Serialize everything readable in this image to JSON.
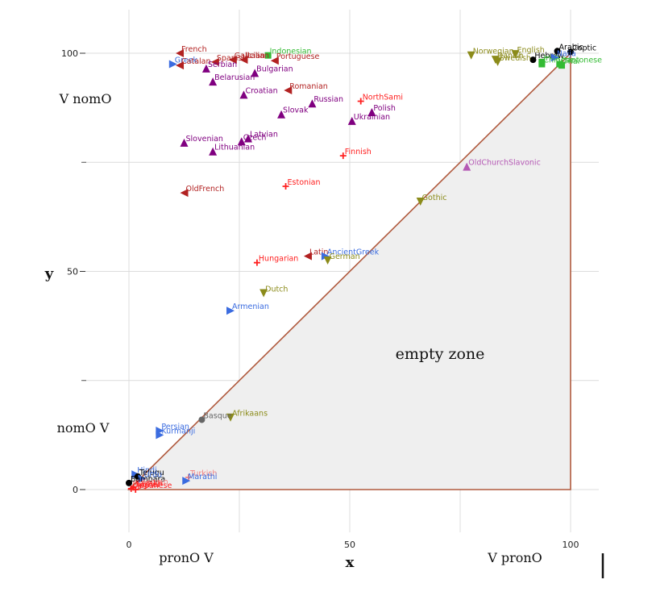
{
  "chart_data": {
    "type": "scatter",
    "xlabel": "x",
    "ylabel": "y",
    "xlim": [
      0,
      100
    ],
    "ylim": [
      0,
      100
    ],
    "x_ticks": [
      0,
      50,
      100
    ],
    "y_ticks": [
      0,
      50,
      100
    ],
    "grid": true,
    "region_label": "empty zone",
    "annotations": {
      "v_nomo": "V nomO",
      "nomo_v": "nomO V",
      "prono_v": "pronO V",
      "v_prono": "V pronO"
    },
    "colors": {
      "red": "#ff2020",
      "darkred": "#b22222",
      "purple": "#800080",
      "violet": "#b55ab5",
      "blue": "#3b6ce0",
      "olive": "#8b8b1a",
      "green": "#33bb33",
      "black": "#000000",
      "brown": "#a0522d",
      "salmon": "#f08080",
      "gray": "#666666"
    },
    "points": [
      {
        "name": "French",
        "x": 11.5,
        "y": 100,
        "color": "darkred",
        "marker": "tri-left"
      },
      {
        "name": "Galician",
        "x": 23.5,
        "y": 98.5,
        "color": "darkred",
        "marker": "tri-left"
      },
      {
        "name": "Indonesian",
        "x": 31.5,
        "y": 99.5,
        "color": "green",
        "marker": "square"
      },
      {
        "name": "Greek",
        "x": 10,
        "y": 97.5,
        "color": "blue",
        "marker": "tri-right"
      },
      {
        "name": "Catalan",
        "x": 11.5,
        "y": 97.2,
        "color": "darkred",
        "marker": "tri-left"
      },
      {
        "name": "Spanish",
        "x": 19.5,
        "y": 98,
        "color": "darkred",
        "marker": "tri-left"
      },
      {
        "name": "Italian",
        "x": 26,
        "y": 98.5,
        "color": "darkred",
        "marker": "tri-left"
      },
      {
        "name": "Portuguese",
        "x": 33,
        "y": 98.3,
        "color": "darkred",
        "marker": "tri-left"
      },
      {
        "name": "Serbian",
        "x": 17.5,
        "y": 96.5,
        "color": "purple",
        "marker": "tri-up"
      },
      {
        "name": "Bulgarian",
        "x": 28.5,
        "y": 95.5,
        "color": "purple",
        "marker": "tri-up"
      },
      {
        "name": "Belarusian",
        "x": 19,
        "y": 93.5,
        "color": "purple",
        "marker": "tri-up"
      },
      {
        "name": "Romanian",
        "x": 36,
        "y": 91.5,
        "color": "darkred",
        "marker": "tri-left"
      },
      {
        "name": "Croatian",
        "x": 26,
        "y": 90.5,
        "color": "purple",
        "marker": "tri-up"
      },
      {
        "name": "Russian",
        "x": 41.5,
        "y": 88.5,
        "color": "purple",
        "marker": "tri-up"
      },
      {
        "name": "NorthSami",
        "x": 52.5,
        "y": 89,
        "color": "red",
        "marker": "plus"
      },
      {
        "name": "Polish",
        "x": 55,
        "y": 86.5,
        "color": "purple",
        "marker": "tri-up"
      },
      {
        "name": "Slovak",
        "x": 34.5,
        "y": 86,
        "color": "purple",
        "marker": "tri-up"
      },
      {
        "name": "Ukrainian",
        "x": 50.5,
        "y": 84.5,
        "color": "purple",
        "marker": "tri-up"
      },
      {
        "name": "Latvian",
        "x": 27,
        "y": 80.5,
        "color": "purple",
        "marker": "tri-up"
      },
      {
        "name": "Slovenian",
        "x": 12.5,
        "y": 79.5,
        "color": "purple",
        "marker": "tri-up"
      },
      {
        "name": "Czech",
        "x": 25.5,
        "y": 79.8,
        "color": "purple",
        "marker": "tri-up"
      },
      {
        "name": "Lithuanian",
        "x": 19,
        "y": 77.5,
        "color": "purple",
        "marker": "tri-up"
      },
      {
        "name": "Finnish",
        "x": 48.5,
        "y": 76.5,
        "color": "red",
        "marker": "plus"
      },
      {
        "name": "OldChurchSlavonic",
        "x": 76.5,
        "y": 74,
        "color": "violet",
        "marker": "tri-up"
      },
      {
        "name": "OldFrench",
        "x": 12.5,
        "y": 68,
        "color": "darkred",
        "marker": "tri-left"
      },
      {
        "name": "Estonian",
        "x": 35.5,
        "y": 69.5,
        "color": "red",
        "marker": "plus"
      },
      {
        "name": "Gothic",
        "x": 66,
        "y": 66,
        "color": "olive",
        "marker": "tri-down"
      },
      {
        "name": "Latin",
        "x": 40.5,
        "y": 53.5,
        "color": "darkred",
        "marker": "tri-left"
      },
      {
        "name": "AncientGreek",
        "x": 44.5,
        "y": 53.5,
        "color": "blue",
        "marker": "tri-right"
      },
      {
        "name": "Hungarian",
        "x": 29,
        "y": 52,
        "color": "red",
        "marker": "plus"
      },
      {
        "name": "German",
        "x": 45,
        "y": 52.5,
        "color": "olive",
        "marker": "tri-down"
      },
      {
        "name": "Dutch",
        "x": 30.5,
        "y": 45,
        "color": "olive",
        "marker": "tri-down"
      },
      {
        "name": "Armenian",
        "x": 23,
        "y": 41,
        "color": "blue",
        "marker": "tri-right"
      },
      {
        "name": "Afrikaans",
        "x": 23,
        "y": 16.5,
        "color": "olive",
        "marker": "tri-down"
      },
      {
        "name": "Basque",
        "x": 16.5,
        "y": 16,
        "color": "gray",
        "marker": "circle"
      },
      {
        "name": "Persian",
        "x": 7,
        "y": 13.5,
        "color": "blue",
        "marker": "tri-right"
      },
      {
        "name": "Kurmanji",
        "x": 7,
        "y": 12.5,
        "color": "blue",
        "marker": "tri-right"
      },
      {
        "name": "Hindi",
        "x": 1.5,
        "y": 3.5,
        "color": "blue",
        "marker": "tri-right"
      },
      {
        "name": "Telugu",
        "x": 2,
        "y": 3,
        "color": "black",
        "marker": "circle"
      },
      {
        "name": "Urdu",
        "x": 3,
        "y": 2.5,
        "color": "blue",
        "marker": "tri-right"
      },
      {
        "name": "Turkish",
        "x": 13.5,
        "y": 2.8,
        "color": "salmon",
        "marker": "plus"
      },
      {
        "name": "Marathi",
        "x": 13,
        "y": 2,
        "color": "blue",
        "marker": "tri-right"
      },
      {
        "name": "Bambara",
        "x": 0,
        "y": 1.5,
        "color": "black",
        "marker": "circle"
      },
      {
        "name": "Korean",
        "x": 2.5,
        "y": 0.8,
        "color": "salmon",
        "marker": "plus"
      },
      {
        "name": "Kazakh",
        "x": 1,
        "y": 0.5,
        "color": "red",
        "marker": "plus"
      },
      {
        "name": "Uyghur",
        "x": 0.5,
        "y": 0.2,
        "color": "red",
        "marker": "plus"
      },
      {
        "name": "Japanese",
        "x": 1.5,
        "y": 0,
        "color": "red",
        "marker": "plus"
      },
      {
        "name": "English",
        "x": 87.5,
        "y": 99.8,
        "color": "olive",
        "marker": "tri-down"
      },
      {
        "name": "Arabic",
        "x": 97,
        "y": 100.5,
        "color": "black",
        "marker": "circle"
      },
      {
        "name": "Coptic",
        "x": 100,
        "y": 100.3,
        "color": "black",
        "marker": "circle"
      },
      {
        "name": "Norwegian",
        "x": 77.5,
        "y": 99.5,
        "color": "olive",
        "marker": "tri-down"
      },
      {
        "name": "Danish",
        "x": 83,
        "y": 98.5,
        "color": "olive",
        "marker": "tri-down"
      },
      {
        "name": "Hebrew",
        "x": 91.5,
        "y": 98.5,
        "color": "black",
        "marker": "circle"
      },
      {
        "name": "Irish",
        "x": 93.5,
        "y": 98,
        "color": "green",
        "marker": "square"
      },
      {
        "name": "Naija",
        "x": 96.5,
        "y": 99,
        "color": "blue",
        "marker": "tri-right"
      },
      {
        "name": "Swedish",
        "x": 83.5,
        "y": 98,
        "color": "olive",
        "marker": "tri-down"
      },
      {
        "name": "Chinese",
        "x": 93.5,
        "y": 97.5,
        "color": "green",
        "marker": "square"
      },
      {
        "name": "Thai",
        "x": 98,
        "y": 97.2,
        "color": "green",
        "marker": "square"
      },
      {
        "name": "Cantonese",
        "x": 97.5,
        "y": 97.5,
        "color": "green",
        "marker": "square"
      }
    ]
  }
}
